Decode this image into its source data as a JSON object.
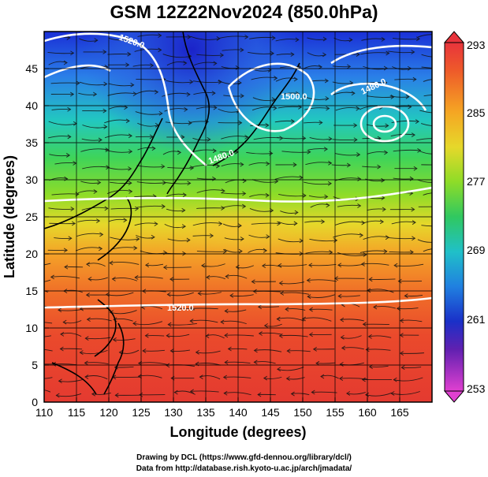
{
  "title": "GSM 12Z22Nov2024 (850.0hPa)",
  "x_axis_label": "Longitude (degrees)",
  "y_axis_label": "Latitude  (degrees)",
  "x_ticks": [
    "110",
    "115",
    "120",
    "125",
    "130",
    "135",
    "140",
    "145",
    "150",
    "155",
    "160",
    "165"
  ],
  "y_ticks": [
    "0",
    "5",
    "10",
    "15",
    "20",
    "25",
    "30",
    "35",
    "40",
    "45"
  ],
  "colorbar": {
    "labels": [
      "293",
      "285",
      "277",
      "269",
      "261",
      "253"
    ],
    "colors": [
      "#e8343c",
      "#f07020",
      "#f5a623",
      "#f5c820",
      "#c8e020",
      "#60d030",
      "#20c070",
      "#20c0c0",
      "#2090e0",
      "#2040d0",
      "#2020a0",
      "#8020a0",
      "#c020c0",
      "#e040d0"
    ]
  },
  "contour_labels": [
    "1520.0",
    "1500.0",
    "1480.0",
    "1480.0",
    "1520.0"
  ],
  "credit_line1": "Drawing by DCL (https://www.gfd-dennou.org/library/dcl/)",
  "credit_line2": "Data from http://database.rish.kyoto-u.ac.jp/arch/jmadata/",
  "chart_data": {
    "type": "heatmap",
    "title": "GSM 12Z22Nov2024 (850.0hPa)",
    "xlabel": "Longitude (degrees)",
    "ylabel": "Latitude  (degrees)",
    "xlim": [
      110,
      170
    ],
    "ylim": [
      0,
      50
    ],
    "colorbar_range": [
      253,
      293
    ],
    "colorbar_ticks": [
      293,
      285,
      277,
      269,
      261,
      253
    ],
    "contour_levels_labeled": [
      1520,
      1500,
      1480,
      1480,
      1520
    ]
  }
}
